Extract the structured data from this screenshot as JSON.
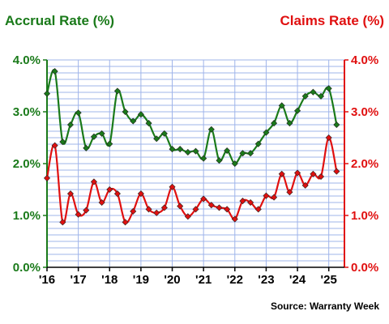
{
  "chart_data": {
    "type": "line",
    "title_left": "Accrual Rate (%)",
    "title_right": "Claims Rate (%)",
    "source": "Source: Warranty Week",
    "y_left": {
      "min": 0,
      "max": 4,
      "ticks": [
        "0.0%",
        "1.0%",
        "2.0%",
        "3.0%",
        "4.0%"
      ],
      "tick_values": [
        0,
        1,
        2,
        3,
        4
      ]
    },
    "y_right": {
      "min": 0,
      "max": 4,
      "ticks": [
        "0.0%",
        "1.0%",
        "2.0%",
        "3.0%",
        "4.0%"
      ],
      "tick_values": [
        0,
        1,
        2,
        3,
        4
      ]
    },
    "x": {
      "min": 2016,
      "max": 2025.5,
      "ticks": [
        "'16",
        "'17",
        "'18",
        "'19",
        "'20",
        "'21",
        "'22",
        "'23",
        "'24",
        "'25"
      ],
      "tick_values": [
        2016,
        2017,
        2018,
        2019,
        2020,
        2021,
        2022,
        2023,
        2024,
        2025
      ]
    },
    "grid": true,
    "colors": {
      "accrual": "#1a7a1a",
      "claims": "#e01010",
      "grid": "#9fb4ea",
      "axis_left": "#1a7a1a",
      "axis_right": "#e01010",
      "axis_bottom": "#000000"
    },
    "series": [
      {
        "name": "Accrual Rate (%)",
        "axis": "left",
        "x": [
          2016.0,
          2016.25,
          2016.5,
          2016.75,
          2017.0,
          2017.25,
          2017.5,
          2017.75,
          2018.0,
          2018.25,
          2018.5,
          2018.75,
          2019.0,
          2019.25,
          2019.5,
          2019.75,
          2020.0,
          2020.25,
          2020.5,
          2020.75,
          2021.0,
          2021.25,
          2021.5,
          2021.75,
          2022.0,
          2022.25,
          2022.5,
          2022.75,
          2023.0,
          2023.25,
          2023.5,
          2023.75,
          2024.0,
          2024.25,
          2024.5,
          2024.75,
          2025.0,
          2025.25
        ],
        "values": [
          3.35,
          3.78,
          2.42,
          2.75,
          2.98,
          2.3,
          2.52,
          2.58,
          2.38,
          3.4,
          3.0,
          2.82,
          2.95,
          2.78,
          2.48,
          2.58,
          2.28,
          2.28,
          2.22,
          2.24,
          2.1,
          2.66,
          2.06,
          2.25,
          2.0,
          2.2,
          2.2,
          2.38,
          2.6,
          2.78,
          3.12,
          2.78,
          3.02,
          3.3,
          3.38,
          3.3,
          3.45,
          2.75
        ]
      },
      {
        "name": "Claims Rate (%)",
        "axis": "right",
        "x": [
          2016.0,
          2016.25,
          2016.5,
          2016.75,
          2017.0,
          2017.25,
          2017.5,
          2017.75,
          2018.0,
          2018.25,
          2018.5,
          2018.75,
          2019.0,
          2019.25,
          2019.5,
          2019.75,
          2020.0,
          2020.25,
          2020.5,
          2020.75,
          2021.0,
          2021.25,
          2021.5,
          2021.75,
          2022.0,
          2022.25,
          2022.5,
          2022.75,
          2023.0,
          2023.25,
          2023.5,
          2023.75,
          2024.0,
          2024.25,
          2024.5,
          2024.75,
          2025.0,
          2025.25
        ],
        "values": [
          1.72,
          2.35,
          0.87,
          1.42,
          1.02,
          1.1,
          1.65,
          1.25,
          1.5,
          1.42,
          0.87,
          1.08,
          1.42,
          1.12,
          1.05,
          1.15,
          1.55,
          1.18,
          0.98,
          1.12,
          1.32,
          1.2,
          1.15,
          1.12,
          0.93,
          1.28,
          1.25,
          1.12,
          1.38,
          1.35,
          1.8,
          1.45,
          1.82,
          1.58,
          1.8,
          1.75,
          2.5,
          1.85
        ]
      }
    ]
  }
}
